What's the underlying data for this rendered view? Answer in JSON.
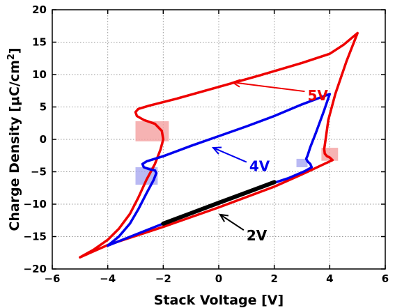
{
  "chart_data": {
    "type": "line",
    "xlabel": "Stack Voltage [V]",
    "ylabel": "Charge Density [μC/cm²]",
    "ylabel_main": "Charge Density [",
    "ylabel_mu": "μ",
    "ylabel_unit": "C/cm",
    "ylabel_sup": "2",
    "ylabel_close": "]",
    "xlim": [
      -6,
      6
    ],
    "ylim": [
      -20,
      20
    ],
    "xticks": [
      -6,
      -4,
      -2,
      0,
      2,
      4,
      6
    ],
    "yticks": [
      -20,
      -15,
      -10,
      -5,
      0,
      5,
      10,
      15,
      20
    ],
    "xtick_labels": [
      "−6",
      "−4",
      "−2",
      "0",
      "2",
      "4",
      "6"
    ],
    "ytick_labels": [
      "−20",
      "−15",
      "−10",
      "−5",
      "0",
      "5",
      "10",
      "15",
      "20"
    ],
    "grid": true,
    "series": [
      {
        "name": "5V",
        "color": "#ee0000",
        "x": [
          -5.0,
          -4.5,
          -4.0,
          -3.6,
          -3.2,
          -2.9,
          -2.6,
          -2.3,
          -2.1,
          -2.0,
          -2.05,
          -2.3,
          -2.7,
          -2.95,
          -3.0,
          -2.9,
          -2.5,
          -1.5,
          0.0,
          1.5,
          3.0,
          4.0,
          4.5,
          5.0,
          4.6,
          4.2,
          3.95,
          3.85,
          3.8,
          3.82,
          3.9,
          4.0,
          4.05,
          4.1,
          3.8,
          3.4,
          3.0,
          2.0,
          0.0,
          -2.0,
          -4.0,
          -5.0
        ],
        "y": [
          -18.2,
          -17.0,
          -15.5,
          -13.8,
          -11.5,
          -9.0,
          -6.2,
          -3.8,
          -1.6,
          0.0,
          1.3,
          2.4,
          3.0,
          3.6,
          4.2,
          4.7,
          5.2,
          6.3,
          8.1,
          9.9,
          11.8,
          13.2,
          14.6,
          16.4,
          12.0,
          7.0,
          3.0,
          0.0,
          -1.5,
          -2.2,
          -2.6,
          -2.8,
          -3.0,
          -3.2,
          -3.8,
          -4.6,
          -5.4,
          -7.3,
          -10.5,
          -13.5,
          -16.3,
          -18.2
        ],
        "label": "5V"
      },
      {
        "name": "4V",
        "color": "#0000ee",
        "x": [
          -4.0,
          -3.6,
          -3.2,
          -2.9,
          -2.6,
          -2.35,
          -2.25,
          -2.3,
          -2.5,
          -2.7,
          -2.75,
          -2.6,
          -2.0,
          -1.0,
          0.0,
          1.0,
          2.0,
          3.0,
          4.0,
          3.8,
          3.5,
          3.3,
          3.2,
          3.15,
          3.2,
          3.3,
          3.35,
          3.1,
          2.5,
          2.0,
          0.0,
          -2.0,
          -4.0
        ],
        "y": [
          -16.4,
          -15.0,
          -13.0,
          -10.8,
          -8.3,
          -6.3,
          -5.2,
          -4.8,
          -4.6,
          -4.3,
          -3.8,
          -3.4,
          -2.6,
          -1.0,
          0.5,
          2.0,
          3.6,
          5.4,
          7.0,
          4.5,
          1.0,
          -1.2,
          -2.5,
          -3.0,
          -3.4,
          -3.8,
          -4.3,
          -4.9,
          -6.0,
          -6.7,
          -9.8,
          -13.0,
          -16.4
        ],
        "label": "4V"
      },
      {
        "name": "2V",
        "color": "#000000",
        "x": [
          -2.0,
          -1.0,
          0.0,
          1.0,
          2.0
        ],
        "y": [
          -13.0,
          -11.4,
          -9.8,
          -8.2,
          -6.6
        ],
        "label": "2V"
      }
    ],
    "highlights": [
      {
        "x": [
          -3.0,
          -1.8
        ],
        "y": [
          -0.3,
          2.8
        ],
        "color": "#f4a0a0"
      },
      {
        "x": [
          -3.0,
          -2.2
        ],
        "y": [
          -7.0,
          -4.3
        ],
        "color": "#a8a8f0"
      },
      {
        "x": [
          3.7,
          4.3
        ],
        "y": [
          -3.3,
          -1.3
        ],
        "color": "#f4a0a0"
      },
      {
        "x": [
          2.8,
          3.2
        ],
        "y": [
          -4.3,
          -3.0
        ],
        "color": "#a8a8f0"
      }
    ],
    "annotations": [
      {
        "text": "5V",
        "color": "#ee0000",
        "text_x": 3.2,
        "text_y": 6.0,
        "arrow_from": [
          3.1,
          7.4
        ],
        "arrow_to": [
          0.5,
          8.8
        ]
      },
      {
        "text": "4V",
        "color": "#0000ee",
        "text_x": 1.1,
        "text_y": -4.9,
        "arrow_from": [
          1.0,
          -3.5
        ],
        "arrow_to": [
          -0.2,
          -1.3
        ]
      },
      {
        "text": "2V",
        "color": "#000000",
        "text_x": 1.0,
        "text_y": -15.6,
        "arrow_from": [
          0.9,
          -14.0
        ],
        "arrow_to": [
          0.05,
          -11.6
        ]
      }
    ]
  }
}
